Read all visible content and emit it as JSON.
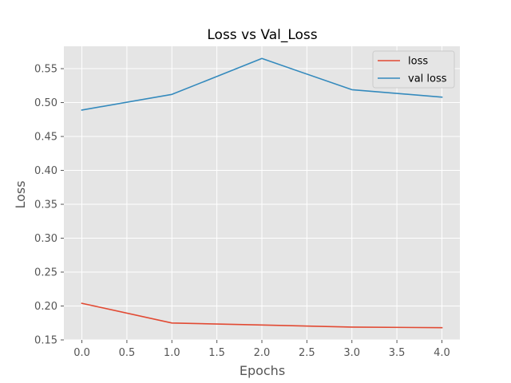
{
  "chart_data": {
    "type": "line",
    "title": "Loss vs Val_Loss",
    "xlabel": "Epochs",
    "ylabel": "Loss",
    "x": [
      0,
      1,
      2,
      3,
      4
    ],
    "xlim": [
      -0.2,
      4.2
    ],
    "ylim": [
      0.15,
      0.583
    ],
    "xticks": [
      0.0,
      0.5,
      1.0,
      1.5,
      2.0,
      2.5,
      3.0,
      3.5,
      4.0
    ],
    "xtick_labels": [
      "0.0",
      "0.5",
      "1.0",
      "1.5",
      "2.0",
      "2.5",
      "3.0",
      "3.5",
      "4.0"
    ],
    "yticks": [
      0.15,
      0.2,
      0.25,
      0.3,
      0.35,
      0.4,
      0.45,
      0.5,
      0.55
    ],
    "ytick_labels": [
      "0.15",
      "0.20",
      "0.25",
      "0.30",
      "0.35",
      "0.40",
      "0.45",
      "0.50",
      "0.55"
    ],
    "grid": true,
    "legend_position": "top-right",
    "series": [
      {
        "name": "loss",
        "color": "#E24A33",
        "values": [
          0.204,
          0.175,
          0.172,
          0.169,
          0.168
        ]
      },
      {
        "name": "val loss",
        "color": "#348ABD",
        "values": [
          0.489,
          0.512,
          0.565,
          0.519,
          0.508
        ]
      }
    ],
    "colors": {
      "plot_background": "#E5E5E5",
      "grid": "#FFFFFF",
      "tick_text": "#555555"
    }
  }
}
